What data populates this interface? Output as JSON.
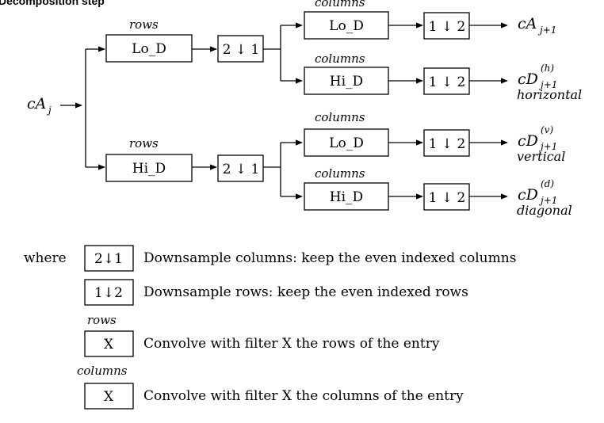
{
  "title": "Decomposition step",
  "input": {
    "main": "cA",
    "sub": "j"
  },
  "filters": {
    "lo": "Lo_D",
    "hi": "Hi_D"
  },
  "axis_labels": {
    "rows": "rows",
    "columns": "columns"
  },
  "downsample_symbols": {
    "cols": {
      "left": "2",
      "arrow": "↓",
      "right": "1"
    },
    "rows": {
      "left": "1",
      "arrow": "↓",
      "right": "2"
    }
  },
  "outputs": [
    {
      "main": "cA",
      "sub": "j+1",
      "sup": "",
      "note": ""
    },
    {
      "main": "cD",
      "sub": "j+1",
      "sup": "(h)",
      "note": "horizontal"
    },
    {
      "main": "cD",
      "sub": "j+1",
      "sup": "(v)",
      "note": "vertical"
    },
    {
      "main": "cD",
      "sub": "j+1",
      "sup": "(d)",
      "note": "diagonal"
    }
  ],
  "legend": {
    "where_label": "where",
    "items": [
      {
        "symbol": "2↓1",
        "text": "Downsample columns: keep the even indexed columns"
      },
      {
        "symbol": "1↓2",
        "text": "Downsample rows: keep the even indexed rows"
      },
      {
        "caption": "rows",
        "symbol": "X",
        "text": "Convolve with filter X the rows of the entry"
      },
      {
        "caption": "columns",
        "symbol": "X",
        "text": "Convolve with filter X the columns of the entry"
      }
    ]
  }
}
